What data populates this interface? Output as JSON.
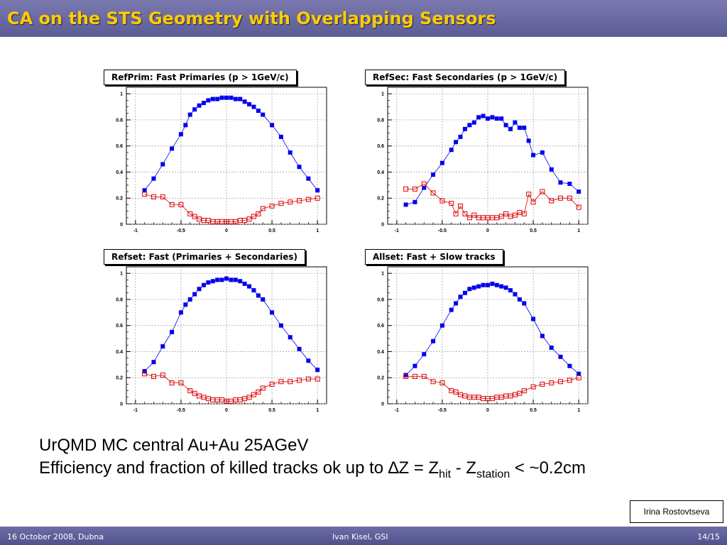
{
  "slide": {
    "title": "CA on the STS Geometry with Overlapping Sensors",
    "line1": "UrQMD MC central Au+Au 25AGeV",
    "line2_prefix": "Efficiency and fraction of killed tracks ok up to ",
    "delta_symbol": "∆",
    "line2_z": "Z = Z",
    "sub_hit": "hit",
    "line2_mid": " - Z",
    "sub_station": "station",
    "line2_suffix": " < ~0.2cm",
    "author": "Irina Rostovtseva",
    "footer_left": "16 October 2008, Dubna",
    "footer_center": "Ivan Kisel, GSI",
    "footer_right": "14/15"
  },
  "colors": {
    "title_text": "#ffcc00",
    "bar": "#5c5c95",
    "efficiency": "#0000ee",
    "killed": "#dd0000"
  },
  "chart_data": [
    {
      "type": "scatter",
      "title": "RefPrim: Fast Primaries (p > 1GeV/c)",
      "xlim": [
        -1.1,
        1.1
      ],
      "ylim": [
        0,
        1.05
      ],
      "xticks": [
        -1,
        -0.5,
        0,
        0.5,
        1
      ],
      "xtick_labels": [
        "-1",
        "-0.5",
        "0",
        "0.5",
        "1"
      ],
      "yticks": [
        0,
        0.2,
        0.4,
        0.6,
        0.8,
        1
      ],
      "ytick_labels": [
        "0",
        "0.2",
        "0.4",
        "0.6",
        "0.8",
        "1"
      ],
      "grid": true,
      "series": [
        {
          "marker": "filled-square",
          "color": "#0000ee",
          "x": [
            -0.9,
            -0.8,
            -0.7,
            -0.6,
            -0.5,
            -0.45,
            -0.4,
            -0.35,
            -0.3,
            -0.25,
            -0.2,
            -0.15,
            -0.1,
            -0.05,
            0,
            0.05,
            0.1,
            0.15,
            0.2,
            0.25,
            0.3,
            0.35,
            0.4,
            0.5,
            0.6,
            0.7,
            0.8,
            0.9,
            1.0
          ],
          "y": [
            0.26,
            0.35,
            0.46,
            0.58,
            0.69,
            0.76,
            0.84,
            0.88,
            0.91,
            0.93,
            0.95,
            0.96,
            0.96,
            0.97,
            0.97,
            0.97,
            0.96,
            0.96,
            0.94,
            0.92,
            0.9,
            0.87,
            0.84,
            0.76,
            0.67,
            0.55,
            0.44,
            0.35,
            0.26
          ]
        },
        {
          "marker": "open-square",
          "color": "#dd0000",
          "x": [
            -0.9,
            -0.8,
            -0.7,
            -0.6,
            -0.5,
            -0.4,
            -0.35,
            -0.3,
            -0.25,
            -0.2,
            -0.15,
            -0.1,
            -0.05,
            0,
            0.05,
            0.1,
            0.15,
            0.2,
            0.25,
            0.3,
            0.35,
            0.4,
            0.5,
            0.6,
            0.7,
            0.8,
            0.9,
            1.0
          ],
          "y": [
            0.23,
            0.21,
            0.21,
            0.15,
            0.15,
            0.08,
            0.06,
            0.04,
            0.03,
            0.03,
            0.02,
            0.02,
            0.02,
            0.02,
            0.02,
            0.02,
            0.03,
            0.03,
            0.04,
            0.06,
            0.08,
            0.12,
            0.14,
            0.16,
            0.17,
            0.18,
            0.19,
            0.2
          ]
        }
      ]
    },
    {
      "type": "scatter",
      "title": "RefSec: Fast Secondaries (p > 1GeV/c)",
      "xlim": [
        -1.1,
        1.1
      ],
      "ylim": [
        0,
        1.05
      ],
      "xticks": [
        -1,
        -0.5,
        0,
        0.5,
        1
      ],
      "xtick_labels": [
        "-1",
        "-0.5",
        "0",
        "0.5",
        "1"
      ],
      "yticks": [
        0,
        0.2,
        0.4,
        0.6,
        0.8,
        1
      ],
      "ytick_labels": [
        "0",
        "0.2",
        "0.4",
        "0.6",
        "0.8",
        "1"
      ],
      "grid": true,
      "series": [
        {
          "marker": "filled-square",
          "color": "#0000ee",
          "x": [
            -0.9,
            -0.8,
            -0.7,
            -0.6,
            -0.5,
            -0.4,
            -0.35,
            -0.3,
            -0.25,
            -0.2,
            -0.15,
            -0.1,
            -0.05,
            0,
            0.05,
            0.1,
            0.15,
            0.2,
            0.25,
            0.3,
            0.35,
            0.4,
            0.45,
            0.5,
            0.6,
            0.7,
            0.8,
            0.9,
            1.0
          ],
          "y": [
            0.15,
            0.17,
            0.28,
            0.38,
            0.47,
            0.57,
            0.63,
            0.67,
            0.73,
            0.76,
            0.78,
            0.82,
            0.83,
            0.81,
            0.82,
            0.81,
            0.81,
            0.76,
            0.73,
            0.78,
            0.74,
            0.74,
            0.64,
            0.53,
            0.55,
            0.42,
            0.32,
            0.31,
            0.25
          ]
        },
        {
          "marker": "open-square",
          "color": "#dd0000",
          "x": [
            -0.9,
            -0.8,
            -0.7,
            -0.6,
            -0.5,
            -0.4,
            -0.35,
            -0.3,
            -0.25,
            -0.2,
            -0.15,
            -0.1,
            -0.05,
            0,
            0.05,
            0.1,
            0.15,
            0.2,
            0.25,
            0.3,
            0.35,
            0.4,
            0.45,
            0.5,
            0.6,
            0.7,
            0.8,
            0.9,
            1.0
          ],
          "y": [
            0.27,
            0.27,
            0.31,
            0.24,
            0.18,
            0.16,
            0.08,
            0.14,
            0.08,
            0.05,
            0.07,
            0.05,
            0.05,
            0.05,
            0.05,
            0.05,
            0.06,
            0.08,
            0.06,
            0.07,
            0.09,
            0.08,
            0.23,
            0.17,
            0.25,
            0.18,
            0.2,
            0.2,
            0.13
          ]
        }
      ]
    },
    {
      "type": "scatter",
      "title": "Refset: Fast (Primaries + Secondaries)",
      "xlim": [
        -1.1,
        1.1
      ],
      "ylim": [
        0,
        1.05
      ],
      "xticks": [
        -1,
        -0.5,
        0,
        0.5,
        1
      ],
      "xtick_labels": [
        "-1",
        "-0.5",
        "0",
        "0.5",
        "1"
      ],
      "yticks": [
        0,
        0.2,
        0.4,
        0.6,
        0.8,
        1
      ],
      "ytick_labels": [
        "0",
        "0.2",
        "0.4",
        "0.6",
        "0.8",
        "1"
      ],
      "grid": true,
      "series": [
        {
          "marker": "filled-square",
          "color": "#0000ee",
          "x": [
            -0.9,
            -0.8,
            -0.7,
            -0.6,
            -0.5,
            -0.45,
            -0.4,
            -0.35,
            -0.3,
            -0.25,
            -0.2,
            -0.15,
            -0.1,
            -0.05,
            0,
            0.05,
            0.1,
            0.15,
            0.2,
            0.25,
            0.3,
            0.35,
            0.4,
            0.5,
            0.6,
            0.7,
            0.8,
            0.9,
            1.0
          ],
          "y": [
            0.25,
            0.32,
            0.44,
            0.55,
            0.7,
            0.76,
            0.8,
            0.84,
            0.88,
            0.91,
            0.93,
            0.94,
            0.95,
            0.95,
            0.96,
            0.95,
            0.95,
            0.94,
            0.92,
            0.9,
            0.87,
            0.83,
            0.8,
            0.7,
            0.6,
            0.51,
            0.42,
            0.33,
            0.26
          ]
        },
        {
          "marker": "open-square",
          "color": "#dd0000",
          "x": [
            -0.9,
            -0.8,
            -0.7,
            -0.6,
            -0.5,
            -0.4,
            -0.35,
            -0.3,
            -0.25,
            -0.2,
            -0.15,
            -0.1,
            -0.05,
            0,
            0.05,
            0.1,
            0.15,
            0.2,
            0.25,
            0.3,
            0.35,
            0.4,
            0.5,
            0.6,
            0.7,
            0.8,
            0.9,
            1.0
          ],
          "y": [
            0.23,
            0.21,
            0.22,
            0.16,
            0.16,
            0.1,
            0.08,
            0.06,
            0.05,
            0.04,
            0.03,
            0.03,
            0.03,
            0.02,
            0.02,
            0.03,
            0.03,
            0.04,
            0.05,
            0.07,
            0.09,
            0.12,
            0.15,
            0.17,
            0.17,
            0.18,
            0.19,
            0.19
          ]
        }
      ]
    },
    {
      "type": "scatter",
      "title": "Allset: Fast + Slow tracks",
      "xlim": [
        -1.1,
        1.1
      ],
      "ylim": [
        0,
        1.05
      ],
      "xticks": [
        -1,
        -0.5,
        0,
        0.5,
        1
      ],
      "xtick_labels": [
        "-1",
        "-0.5",
        "0",
        "0.5",
        "1"
      ],
      "yticks": [
        0,
        0.2,
        0.4,
        0.6,
        0.8,
        1
      ],
      "ytick_labels": [
        "0",
        "0.2",
        "0.4",
        "0.6",
        "0.8",
        "1"
      ],
      "grid": true,
      "series": [
        {
          "marker": "filled-square",
          "color": "#0000ee",
          "x": [
            -0.9,
            -0.8,
            -0.7,
            -0.6,
            -0.5,
            -0.4,
            -0.35,
            -0.3,
            -0.25,
            -0.2,
            -0.15,
            -0.1,
            -0.05,
            0,
            0.05,
            0.1,
            0.15,
            0.2,
            0.25,
            0.3,
            0.35,
            0.4,
            0.5,
            0.6,
            0.7,
            0.8,
            0.9,
            1.0
          ],
          "y": [
            0.22,
            0.29,
            0.38,
            0.48,
            0.6,
            0.72,
            0.77,
            0.82,
            0.85,
            0.88,
            0.89,
            0.9,
            0.91,
            0.91,
            0.92,
            0.91,
            0.9,
            0.89,
            0.87,
            0.84,
            0.8,
            0.77,
            0.65,
            0.52,
            0.43,
            0.36,
            0.29,
            0.23
          ]
        },
        {
          "marker": "open-square",
          "color": "#dd0000",
          "x": [
            -0.9,
            -0.8,
            -0.7,
            -0.6,
            -0.5,
            -0.4,
            -0.35,
            -0.3,
            -0.25,
            -0.2,
            -0.15,
            -0.1,
            -0.05,
            0,
            0.05,
            0.1,
            0.15,
            0.2,
            0.25,
            0.3,
            0.35,
            0.4,
            0.5,
            0.6,
            0.7,
            0.8,
            0.9,
            1.0
          ],
          "y": [
            0.21,
            0.21,
            0.21,
            0.17,
            0.16,
            0.1,
            0.09,
            0.07,
            0.06,
            0.05,
            0.05,
            0.05,
            0.04,
            0.04,
            0.04,
            0.05,
            0.05,
            0.06,
            0.06,
            0.07,
            0.08,
            0.1,
            0.13,
            0.15,
            0.16,
            0.17,
            0.18,
            0.2
          ]
        }
      ]
    }
  ]
}
